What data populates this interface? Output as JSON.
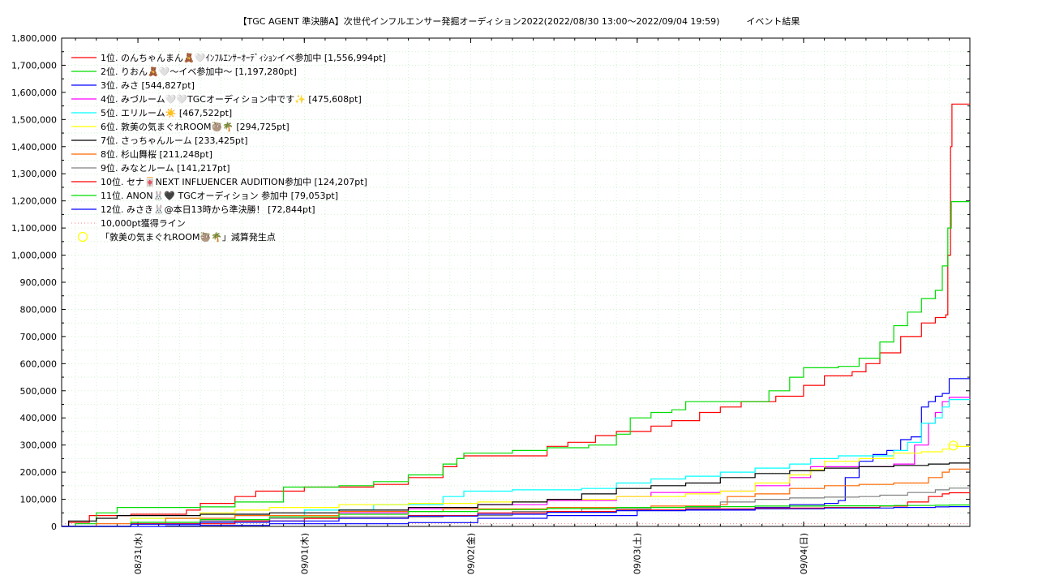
{
  "chart_data": {
    "type": "line",
    "title": "【TGC AGENT 準決勝A】次世代インフルエンサー発掘オーディション2022(2022/08/30 13:00～2022/09/04 19:59)　　　イベント結果",
    "xlabel": "",
    "ylabel": "",
    "x_unit": "hours since 2022/08/30 13:00",
    "xlim": [
      0,
      130.98
    ],
    "ylim": [
      0,
      1800000
    ],
    "y_tick_step": 100000,
    "y_ticks": [
      "0",
      "100,000",
      "200,000",
      "300,000",
      "400,000",
      "500,000",
      "600,000",
      "700,000",
      "800,000",
      "900,000",
      "1,000,000",
      "1,100,000",
      "1,200,000",
      "1,300,000",
      "1,400,000",
      "1,500,000",
      "1,600,000",
      "1,700,000",
      "1,800,000"
    ],
    "x_ticks": [
      {
        "x": 11,
        "label": "08/31(水)"
      },
      {
        "x": 35,
        "label": "09/01(木)"
      },
      {
        "x": 59,
        "label": "09/02(金)"
      },
      {
        "x": 83,
        "label": "09/03(土)"
      },
      {
        "x": 107,
        "label": "09/04(日)"
      }
    ],
    "grid": true,
    "legend_position": "top-left",
    "series": [
      {
        "name": "1位. のんちゃんまん🧸🤍ｲﾝﾌﾙｴﾝｻｰｵｰﾃﾞｨｼｮﾝイベ参加中 [1,556,994pt]",
        "color": "#ff0000",
        "points": [
          [
            0,
            0
          ],
          [
            1,
            15000
          ],
          [
            4,
            40000
          ],
          [
            10,
            45000
          ],
          [
            18,
            60000
          ],
          [
            20,
            85000
          ],
          [
            25,
            110000
          ],
          [
            28,
            130000
          ],
          [
            35,
            145000
          ],
          [
            45,
            155000
          ],
          [
            50,
            180000
          ],
          [
            55,
            220000
          ],
          [
            57,
            250000
          ],
          [
            58,
            260000
          ],
          [
            67,
            260000
          ],
          [
            70,
            295000
          ],
          [
            73,
            310000
          ],
          [
            77,
            335000
          ],
          [
            80,
            350000
          ],
          [
            85,
            370000
          ],
          [
            88,
            390000
          ],
          [
            92,
            420000
          ],
          [
            95,
            440000
          ],
          [
            98,
            460000
          ],
          [
            103,
            480000
          ],
          [
            107,
            520000
          ],
          [
            110,
            555000
          ],
          [
            114,
            570000
          ],
          [
            116,
            600000
          ],
          [
            118,
            640000
          ],
          [
            121,
            700000
          ],
          [
            124,
            750000
          ],
          [
            126,
            770000
          ],
          [
            127.5,
            780000
          ],
          [
            127.8,
            1000000
          ],
          [
            128.2,
            1400000
          ],
          [
            128.4,
            1556994
          ],
          [
            131,
            1556994
          ]
        ]
      },
      {
        "name": "2位. りおん🧸🤍～イベ参加中～ [1,197,280pt]",
        "color": "#00dd00",
        "points": [
          [
            0,
            0
          ],
          [
            2,
            10000
          ],
          [
            5,
            50000
          ],
          [
            8,
            70000
          ],
          [
            20,
            72000
          ],
          [
            25,
            90000
          ],
          [
            32,
            145000
          ],
          [
            40,
            150000
          ],
          [
            45,
            165000
          ],
          [
            50,
            190000
          ],
          [
            55,
            230000
          ],
          [
            57,
            250000
          ],
          [
            58,
            270000
          ],
          [
            65,
            280000
          ],
          [
            70,
            290000
          ],
          [
            76,
            300000
          ],
          [
            80,
            340000
          ],
          [
            82,
            400000
          ],
          [
            85,
            420000
          ],
          [
            88,
            430000
          ],
          [
            90,
            460000
          ],
          [
            100,
            460000
          ],
          [
            102,
            500000
          ],
          [
            105,
            550000
          ],
          [
            107,
            585000
          ],
          [
            112,
            590000
          ],
          [
            115,
            620000
          ],
          [
            118,
            680000
          ],
          [
            120,
            740000
          ],
          [
            122,
            790000
          ],
          [
            124,
            840000
          ],
          [
            126,
            870000
          ],
          [
            127,
            960000
          ],
          [
            127.8,
            1100000
          ],
          [
            128.3,
            1197280
          ],
          [
            131,
            1197280
          ]
        ]
      },
      {
        "name": "3位. みさ [544,827pt]",
        "color": "#0000ff",
        "points": [
          [
            0,
            0
          ],
          [
            15,
            2000
          ],
          [
            20,
            4000
          ],
          [
            30,
            10000
          ],
          [
            50,
            14000
          ],
          [
            60,
            30000
          ],
          [
            70,
            40000
          ],
          [
            83,
            60000
          ],
          [
            100,
            70000
          ],
          [
            105,
            80000
          ],
          [
            110,
            85000
          ],
          [
            112,
            95000
          ],
          [
            113,
            180000
          ],
          [
            115,
            240000
          ],
          [
            117,
            265000
          ],
          [
            119,
            280000
          ],
          [
            121,
            320000
          ],
          [
            122.5,
            330000
          ],
          [
            124,
            440000
          ],
          [
            125,
            460000
          ],
          [
            126,
            480000
          ],
          [
            127,
            490000
          ],
          [
            128,
            544827
          ],
          [
            131,
            544827
          ]
        ]
      },
      {
        "name": "4位. みづルーム🤍🤍TGCオーディション中です✨ [475,608pt]",
        "color": "#ff00ff",
        "points": [
          [
            0,
            0
          ],
          [
            10,
            10000
          ],
          [
            20,
            20000
          ],
          [
            30,
            30000
          ],
          [
            40,
            50000
          ],
          [
            50,
            65000
          ],
          [
            60,
            80000
          ],
          [
            70,
            95000
          ],
          [
            80,
            110000
          ],
          [
            85,
            125000
          ],
          [
            95,
            130000
          ],
          [
            100,
            150000
          ],
          [
            105,
            180000
          ],
          [
            108,
            220000
          ],
          [
            120,
            230000
          ],
          [
            123,
            300000
          ],
          [
            125,
            380000
          ],
          [
            126,
            420000
          ],
          [
            127,
            460000
          ],
          [
            128,
            475608
          ],
          [
            131,
            475608
          ]
        ]
      },
      {
        "name": "5位. エリルーム☀️ [467,522pt]",
        "color": "#00ffff",
        "points": [
          [
            0,
            0
          ],
          [
            10,
            30000
          ],
          [
            25,
            40000
          ],
          [
            35,
            60000
          ],
          [
            45,
            80000
          ],
          [
            55,
            110000
          ],
          [
            58,
            130000
          ],
          [
            65,
            135000
          ],
          [
            75,
            140000
          ],
          [
            80,
            160000
          ],
          [
            85,
            175000
          ],
          [
            90,
            185000
          ],
          [
            95,
            200000
          ],
          [
            100,
            215000
          ],
          [
            105,
            230000
          ],
          [
            108,
            250000
          ],
          [
            112,
            260000
          ],
          [
            120,
            280000
          ],
          [
            122,
            310000
          ],
          [
            124,
            380000
          ],
          [
            126,
            400000
          ],
          [
            127,
            440000
          ],
          [
            128,
            467522
          ],
          [
            131,
            467522
          ]
        ]
      },
      {
        "name": "6位. 敦美の気まぐれROOM🦥🌴 [294,725pt]",
        "color": "#ffff00",
        "points": [
          [
            0,
            0
          ],
          [
            10,
            30000
          ],
          [
            20,
            50000
          ],
          [
            25,
            60000
          ],
          [
            30,
            70000
          ],
          [
            40,
            80000
          ],
          [
            50,
            85000
          ],
          [
            60,
            90000
          ],
          [
            70,
            100000
          ],
          [
            80,
            110000
          ],
          [
            90,
            120000
          ],
          [
            95,
            130000
          ],
          [
            100,
            160000
          ],
          [
            105,
            190000
          ],
          [
            108,
            210000
          ],
          [
            110,
            240000
          ],
          [
            115,
            250000
          ],
          [
            120,
            270000
          ],
          [
            124,
            275000
          ],
          [
            127,
            285000
          ],
          [
            128,
            300000
          ],
          [
            129,
            294725
          ],
          [
            131,
            294725
          ]
        ]
      },
      {
        "name": "7位. さっちゃんルーム [233,425pt]",
        "color": "#000000",
        "points": [
          [
            0,
            0
          ],
          [
            1,
            20000
          ],
          [
            5,
            30000
          ],
          [
            8,
            40000
          ],
          [
            20,
            45000
          ],
          [
            30,
            50000
          ],
          [
            40,
            60000
          ],
          [
            50,
            70000
          ],
          [
            60,
            80000
          ],
          [
            65,
            90000
          ],
          [
            70,
            100000
          ],
          [
            75,
            120000
          ],
          [
            80,
            140000
          ],
          [
            85,
            150000
          ],
          [
            90,
            160000
          ],
          [
            95,
            180000
          ],
          [
            100,
            195000
          ],
          [
            105,
            205000
          ],
          [
            110,
            215000
          ],
          [
            115,
            220000
          ],
          [
            120,
            225000
          ],
          [
            125,
            230000
          ],
          [
            128,
            233425
          ],
          [
            131,
            233425
          ]
        ]
      },
      {
        "name": "8位. 杉山舞桜 [211,248pt]",
        "color": "#ff6600",
        "points": [
          [
            0,
            0
          ],
          [
            5,
            10000
          ],
          [
            15,
            30000
          ],
          [
            25,
            40000
          ],
          [
            40,
            55000
          ],
          [
            55,
            65000
          ],
          [
            70,
            70000
          ],
          [
            85,
            75000
          ],
          [
            95,
            80000
          ],
          [
            96,
            110000
          ],
          [
            100,
            120000
          ],
          [
            105,
            140000
          ],
          [
            110,
            150000
          ],
          [
            115,
            155000
          ],
          [
            120,
            160000
          ],
          [
            125,
            180000
          ],
          [
            127,
            200000
          ],
          [
            128,
            211248
          ],
          [
            131,
            211248
          ]
        ]
      },
      {
        "name": "9位. みなとルーム [141,217pt]",
        "color": "#808080",
        "points": [
          [
            0,
            0
          ],
          [
            10,
            15000
          ],
          [
            20,
            20000
          ],
          [
            30,
            30000
          ],
          [
            40,
            35000
          ],
          [
            55,
            40000
          ],
          [
            65,
            55000
          ],
          [
            75,
            65000
          ],
          [
            85,
            70000
          ],
          [
            95,
            90000
          ],
          [
            100,
            100000
          ],
          [
            105,
            105000
          ],
          [
            110,
            108000
          ],
          [
            115,
            110000
          ],
          [
            118,
            115000
          ],
          [
            122,
            125000
          ],
          [
            126,
            135000
          ],
          [
            128,
            141217
          ],
          [
            131,
            141217
          ]
        ]
      },
      {
        "name": "10位. セナ🀄NEXT INFLUENCER AUDITION参加中 [124,207pt]",
        "color": "#ff0000",
        "points": [
          [
            0,
            0
          ],
          [
            10,
            10000
          ],
          [
            25,
            20000
          ],
          [
            35,
            30000
          ],
          [
            50,
            40000
          ],
          [
            60,
            50000
          ],
          [
            70,
            55000
          ],
          [
            80,
            60000
          ],
          [
            90,
            65000
          ],
          [
            100,
            68000
          ],
          [
            110,
            70000
          ],
          [
            118,
            75000
          ],
          [
            122,
            90000
          ],
          [
            125,
            110000
          ],
          [
            127,
            120000
          ],
          [
            128,
            124207
          ],
          [
            131,
            124207
          ]
        ]
      },
      {
        "name": "11位. ANON🐰🖤 TGCオーディション 参加中 [79,053pt]",
        "color": "#00dd00",
        "points": [
          [
            0,
            0
          ],
          [
            10,
            15000
          ],
          [
            20,
            25000
          ],
          [
            30,
            35000
          ],
          [
            40,
            45000
          ],
          [
            50,
            55000
          ],
          [
            60,
            62000
          ],
          [
            70,
            66000
          ],
          [
            80,
            70000
          ],
          [
            90,
            73000
          ],
          [
            100,
            75000
          ],
          [
            110,
            76000
          ],
          [
            120,
            77000
          ],
          [
            126,
            78000
          ],
          [
            128,
            79053
          ],
          [
            131,
            79053
          ]
        ]
      },
      {
        "name": "12位. みさき🐰@本日13時から準決勝！ [72,844pt]",
        "color": "#0000ff",
        "points": [
          [
            0,
            0
          ],
          [
            10,
            8000
          ],
          [
            20,
            15000
          ],
          [
            30,
            20000
          ],
          [
            40,
            30000
          ],
          [
            50,
            38000
          ],
          [
            60,
            45000
          ],
          [
            70,
            52000
          ],
          [
            80,
            58000
          ],
          [
            90,
            62000
          ],
          [
            100,
            65000
          ],
          [
            110,
            68000
          ],
          [
            120,
            70000
          ],
          [
            126,
            72000
          ],
          [
            128,
            72844
          ],
          [
            131,
            72844
          ]
        ]
      }
    ],
    "reference_line": {
      "name": "10,000pt獲得ライン",
      "value": 10000,
      "color": "#ff8080"
    },
    "marker": {
      "name": "「敦美の気まぐれROOM🦥🌴」減算発生点",
      "x": 128.6,
      "y": 298000,
      "color": "#ffff00"
    }
  }
}
